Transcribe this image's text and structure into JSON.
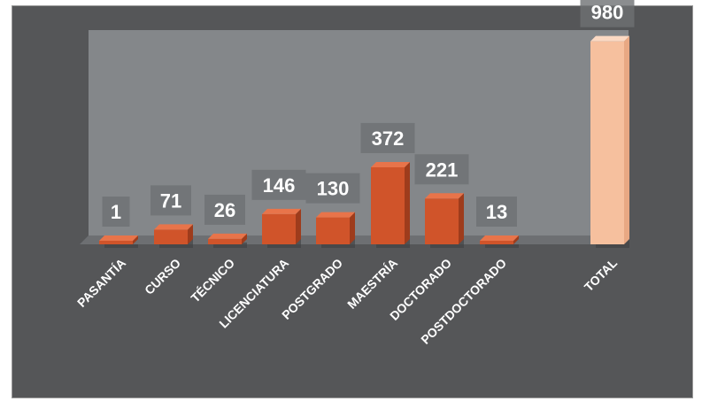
{
  "chart_data": {
    "type": "bar",
    "categories": [
      "PASANTÍA",
      "CURSO",
      "TÉCNICO",
      "LICENCIATURA",
      "POSTGRADO",
      "MAESTRÍA",
      "DOCTORADO",
      "POSTDOCTORADO",
      "TOTAL"
    ],
    "values": [
      1,
      71,
      26,
      146,
      130,
      372,
      221,
      13,
      980
    ],
    "value_labels": [
      "1",
      "71",
      "26",
      "146",
      "130",
      "372",
      "221",
      "13",
      "980"
    ],
    "ylim": [
      0,
      1000
    ],
    "grid": false,
    "legend": "none",
    "colors": {
      "bar": "#d0542a",
      "bar_top": "#e8744a",
      "total_bar": "#f6c09e",
      "total_bar_top": "#fbd9c3",
      "wall": "#898c8f",
      "floor": "#6d6f72",
      "background": "#555658",
      "label_box": "#6e7073",
      "text": "#ffffff"
    }
  }
}
